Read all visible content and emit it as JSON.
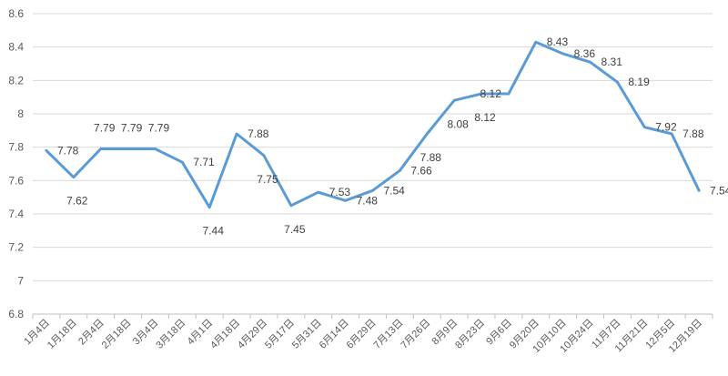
{
  "colors": {
    "series": "#5b9bd5",
    "grid": "#d9d9d9",
    "text": "#404040"
  },
  "chart_data": {
    "type": "line",
    "title": "",
    "xlabel": "",
    "ylabel": "",
    "ylim": [
      6.8,
      8.6
    ],
    "y_ticks": [
      "6.8",
      "7",
      "7.2",
      "7.4",
      "7.6",
      "7.8",
      "8",
      "8.2",
      "8.4",
      "8.6"
    ],
    "grid": true,
    "legend": "none",
    "categories": [
      "1月4日",
      "1月18日",
      "2月4日",
      "2月18日",
      "3月4日",
      "3月18日",
      "4月1日",
      "4月18日",
      "4月29日",
      "5月17日",
      "5月31日",
      "6月14日",
      "6月29日",
      "7月13日",
      "7月26日",
      "8月9日",
      "8月23日",
      "9月6日",
      "9月20日",
      "10月10日",
      "10月24日",
      "11月7日",
      "11月21日",
      "12月5日",
      "12月19日"
    ],
    "series": [
      {
        "values": [
          7.78,
          7.62,
          7.79,
          7.79,
          7.79,
          7.71,
          7.44,
          7.88,
          7.75,
          7.45,
          7.53,
          7.48,
          7.54,
          7.66,
          7.88,
          8.08,
          8.12,
          8.12,
          8.43,
          8.36,
          8.31,
          8.19,
          7.92,
          7.88,
          7.54
        ],
        "labels": [
          "7.78",
          "7.62",
          "7.79",
          "7.79",
          "7.79",
          "7.71",
          "7.44",
          "7.88",
          "7.75",
          "7.45",
          "7.53",
          "7.48",
          "7.54",
          "7.66",
          "7.88",
          "8.08",
          "8.12",
          "8.12",
          "8.43",
          "8.36",
          "8.31",
          "8.19",
          "7.92",
          "7.88",
          "7.54"
        ]
      }
    ]
  }
}
